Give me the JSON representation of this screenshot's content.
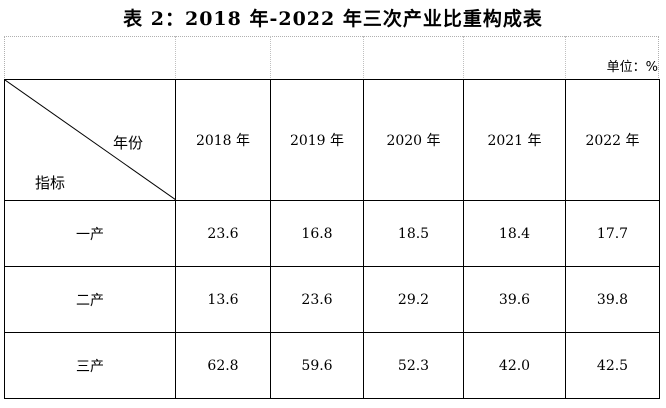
{
  "title": "表 2：2018 年-2022 年三次产业比重构成表",
  "unit_label": "单位：%",
  "table": {
    "corner_top": "年份",
    "corner_bottom": "指标",
    "years": [
      "2018 年",
      "2019 年",
      "2020 年",
      "2021 年",
      "2022 年"
    ],
    "rows": [
      {
        "label": "一产",
        "values": [
          "23.6",
          "16.8",
          "18.5",
          "18.4",
          "17.7"
        ]
      },
      {
        "label": "二产",
        "values": [
          "13.6",
          "23.6",
          "29.2",
          "39.6",
          "39.8"
        ]
      },
      {
        "label": "三产",
        "values": [
          "62.8",
          "59.6",
          "52.3",
          "42.0",
          "42.5"
        ]
      }
    ]
  }
}
